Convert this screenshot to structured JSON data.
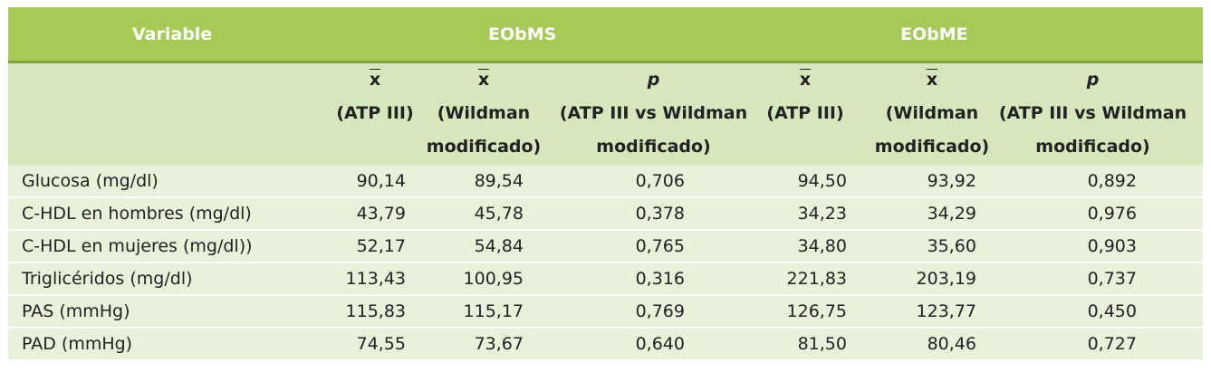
{
  "header": {
    "variable": "Variable",
    "group1": "EObMS",
    "group2": "EObME"
  },
  "subheader": {
    "mean_symbol": "x",
    "p_symbol": "p",
    "atp": "(ATP III)",
    "wild_1": "(Wildman",
    "wild_2": "modificado)",
    "pcmp_1": "(ATP III vs Wildman",
    "pcmp_2": "modificado)"
  },
  "rows": [
    {
      "label": "Glucosa (mg/dl)",
      "ms_atp": "90,14",
      "ms_wild": "89,54",
      "ms_p": "0,706",
      "me_atp": "94,50",
      "me_wild": "93,92",
      "me_p": "0,892"
    },
    {
      "label": "C-HDL en hombres (mg/dl)",
      "ms_atp": "43,79",
      "ms_wild": "45,78",
      "ms_p": "0,378",
      "me_atp": "34,23",
      "me_wild": "34,29",
      "me_p": "0,976"
    },
    {
      "label": "C-HDL en mujeres (mg/dl))",
      "ms_atp": "52,17",
      "ms_wild": "54,84",
      "ms_p": "0,765",
      "me_atp": "34,80",
      "me_wild": "35,60",
      "me_p": "0,903"
    },
    {
      "label": "Triglicéridos (mg/dl)",
      "ms_atp": "113,43",
      "ms_wild": "100,95",
      "ms_p": "0,316",
      "me_atp": "221,83",
      "me_wild": "203,19",
      "me_p": "0,737"
    },
    {
      "label": "PAS (mmHg)",
      "ms_atp": "115,83",
      "ms_wild": "115,17",
      "ms_p": "0,769",
      "me_atp": "126,75",
      "me_wild": "123,77",
      "me_p": "0,450"
    },
    {
      "label": "PAD (mmHg)",
      "ms_atp": "74,55",
      "ms_wild": "73,67",
      "ms_p": "0,640",
      "me_atp": "81,50",
      "me_wild": "80,46",
      "me_p": "0,727"
    }
  ]
}
